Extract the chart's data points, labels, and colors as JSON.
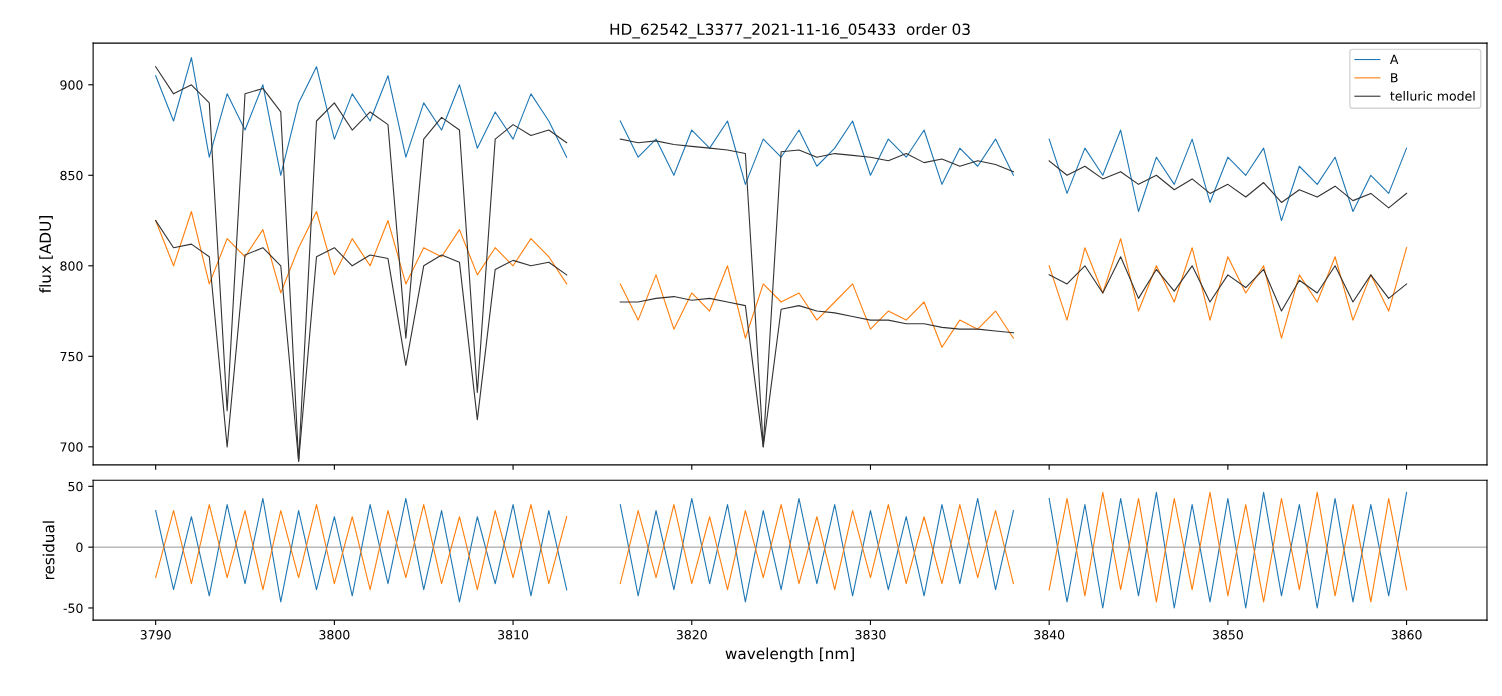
{
  "chart_data": [
    {
      "type": "line",
      "title": "HD_62542_L3377_2021-11-16_05433  order 03",
      "ylabel": "flux [ADU]",
      "xlim": [
        3786.5,
        3864.5
      ],
      "xticks": [
        3790,
        3800,
        3810,
        3820,
        3830,
        3840,
        3850,
        3860
      ],
      "ylim": [
        690,
        923
      ],
      "yticks": [
        700,
        750,
        800,
        850,
        900
      ],
      "tick_labels": "y",
      "legend": "top right",
      "grid": false,
      "x": [
        3790,
        3791,
        3792,
        3793,
        3794,
        3795,
        3796,
        3797,
        3798,
        3799,
        3800,
        3801,
        3802,
        3803,
        3804,
        3805,
        3806,
        3807,
        3808,
        3809,
        3810,
        3811,
        3812,
        3813,
        3814.5,
        3816,
        3817,
        3818,
        3819,
        3820,
        3821,
        3822,
        3823,
        3824,
        3825,
        3826,
        3827,
        3828,
        3829,
        3830,
        3831,
        3832,
        3833,
        3834,
        3835,
        3836,
        3837,
        3838,
        3839,
        3840,
        3841,
        3842,
        3843,
        3844,
        3845,
        3846,
        3847,
        3848,
        3849,
        3850,
        3851,
        3852,
        3853,
        3854,
        3855,
        3856,
        3857,
        3858,
        3859,
        3860
      ],
      "series": [
        {
          "name": "A",
          "color": "#1f77b4",
          "values": [
            905,
            880,
            915,
            860,
            895,
            875,
            900,
            850,
            890,
            910,
            870,
            895,
            880,
            905,
            860,
            890,
            875,
            900,
            865,
            885,
            870,
            895,
            880,
            860,
            null,
            880,
            860,
            870,
            850,
            875,
            865,
            880,
            845,
            870,
            860,
            875,
            855,
            865,
            880,
            850,
            870,
            860,
            875,
            845,
            865,
            855,
            870,
            850,
            null,
            870,
            840,
            865,
            850,
            875,
            830,
            860,
            845,
            870,
            835,
            860,
            850,
            865,
            825,
            855,
            845,
            860,
            830,
            850,
            840,
            865
          ]
        },
        {
          "name": "B",
          "color": "#ff7f0e",
          "values": [
            825,
            800,
            830,
            790,
            815,
            805,
            820,
            785,
            810,
            830,
            795,
            815,
            800,
            825,
            790,
            810,
            805,
            820,
            795,
            810,
            800,
            815,
            805,
            790,
            null,
            790,
            770,
            795,
            765,
            785,
            775,
            800,
            760,
            790,
            780,
            785,
            770,
            780,
            790,
            765,
            775,
            770,
            780,
            755,
            770,
            765,
            775,
            760,
            null,
            800,
            770,
            810,
            785,
            815,
            775,
            800,
            780,
            810,
            770,
            805,
            785,
            800,
            760,
            795,
            780,
            805,
            770,
            795,
            775,
            810
          ]
        },
        {
          "name": "telluric model",
          "color": "#333333",
          "values": [
            910,
            895,
            900,
            890,
            720,
            895,
            898,
            885,
            692,
            880,
            890,
            875,
            885,
            878,
            760,
            870,
            882,
            875,
            730,
            870,
            878,
            872,
            875,
            868,
            null,
            870,
            868,
            869,
            867,
            866,
            865,
            864,
            862,
            700,
            863,
            864,
            860,
            862,
            861,
            860,
            858,
            862,
            857,
            859,
            855,
            858,
            856,
            852,
            null,
            858,
            850,
            855,
            848,
            852,
            845,
            850,
            842,
            848,
            840,
            845,
            838,
            846,
            835,
            842,
            838,
            844,
            836,
            840,
            832,
            840
          ]
        },
        {
          "color": "#333333",
          "values": [
            825,
            810,
            812,
            805,
            700,
            806,
            810,
            800,
            692,
            805,
            810,
            800,
            806,
            804,
            745,
            800,
            806,
            802,
            715,
            798,
            803,
            800,
            802,
            795,
            null,
            780,
            780,
            782,
            783,
            781,
            782,
            780,
            778,
            700,
            776,
            778,
            775,
            774,
            772,
            770,
            770,
            768,
            768,
            766,
            765,
            765,
            764,
            763,
            null,
            795,
            790,
            800,
            785,
            805,
            782,
            798,
            786,
            800,
            780,
            795,
            788,
            798,
            775,
            792,
            785,
            800,
            780,
            795,
            782,
            790
          ]
        }
      ]
    },
    {
      "type": "line",
      "ylabel": "residual",
      "xlabel": "wavelength [nm]",
      "xlim": [
        3786.5,
        3864.5
      ],
      "xticks": [
        3790,
        3800,
        3810,
        3820,
        3830,
        3840,
        3850,
        3860
      ],
      "ylim": [
        -60,
        55
      ],
      "yticks": [
        -50,
        0,
        50
      ],
      "grid": false,
      "ref_lines": [
        {
          "axis": "y",
          "value": 0,
          "color": "#808080"
        }
      ],
      "x": [
        3790,
        3791,
        3792,
        3793,
        3794,
        3795,
        3796,
        3797,
        3798,
        3799,
        3800,
        3801,
        3802,
        3803,
        3804,
        3805,
        3806,
        3807,
        3808,
        3809,
        3810,
        3811,
        3812,
        3813,
        3814.5,
        3816,
        3817,
        3818,
        3819,
        3820,
        3821,
        3822,
        3823,
        3824,
        3825,
        3826,
        3827,
        3828,
        3829,
        3830,
        3831,
        3832,
        3833,
        3834,
        3835,
        3836,
        3837,
        3838,
        3839,
        3840,
        3841,
        3842,
        3843,
        3844,
        3845,
        3846,
        3847,
        3848,
        3849,
        3850,
        3851,
        3852,
        3853,
        3854,
        3855,
        3856,
        3857,
        3858,
        3859,
        3860
      ],
      "series": [
        {
          "color": "#1f77b4",
          "values": [
            30,
            -35,
            25,
            -40,
            35,
            -30,
            40,
            -45,
            30,
            -35,
            25,
            -40,
            35,
            -30,
            40,
            -35,
            30,
            -45,
            25,
            -30,
            35,
            -40,
            30,
            -35,
            null,
            35,
            -40,
            30,
            -35,
            40,
            -30,
            35,
            -45,
            30,
            -35,
            40,
            -30,
            35,
            -40,
            30,
            -35,
            25,
            -40,
            35,
            -30,
            40,
            -35,
            30,
            null,
            40,
            -45,
            35,
            -50,
            40,
            -40,
            45,
            -50,
            35,
            -45,
            40,
            -50,
            45,
            -40,
            35,
            -50,
            40,
            -45,
            35,
            -40,
            45
          ]
        },
        {
          "color": "#ff7f0e",
          "values": [
            -25,
            30,
            -30,
            35,
            -25,
            30,
            -35,
            30,
            -25,
            35,
            -30,
            25,
            -35,
            30,
            -25,
            35,
            -30,
            25,
            -35,
            30,
            -25,
            35,
            -30,
            25,
            null,
            -30,
            30,
            -25,
            35,
            -30,
            25,
            -35,
            30,
            -25,
            35,
            -30,
            25,
            -35,
            30,
            -25,
            35,
            -30,
            25,
            -30,
            35,
            -25,
            30,
            -30,
            null,
            -35,
            40,
            -40,
            45,
            -35,
            40,
            -45,
            40,
            -35,
            45,
            -40,
            35,
            -45,
            40,
            -35,
            45,
            -40,
            35,
            -45,
            40,
            -35
          ]
        }
      ]
    }
  ]
}
